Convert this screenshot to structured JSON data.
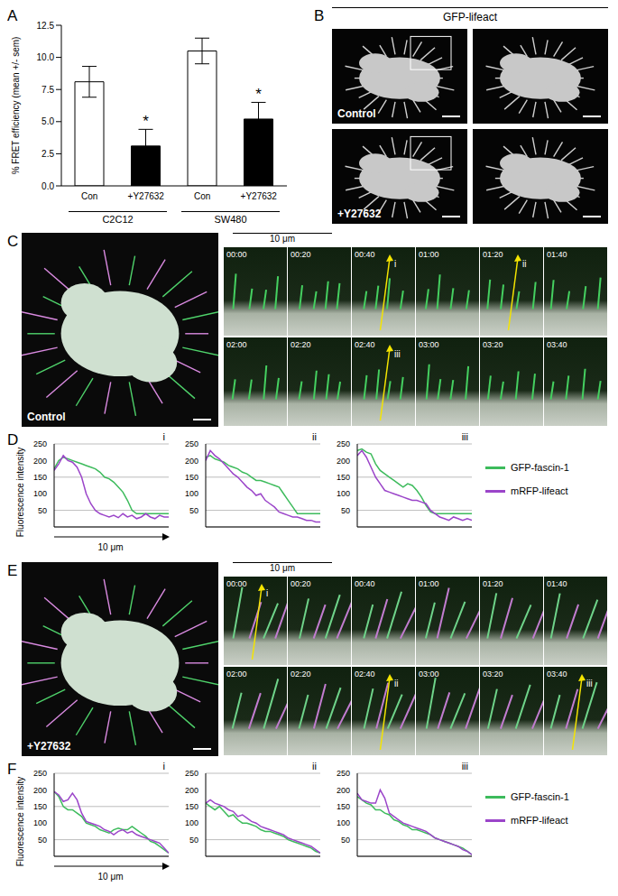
{
  "chart_data": [
    {
      "type": "bar",
      "panel": "A",
      "y_label": "% FRET efficiency (mean +/- sem)",
      "categories": [
        "Con",
        "+Y27632",
        "Con",
        "+Y27632"
      ],
      "groups": [
        "C2C12",
        "SW480"
      ],
      "values": [
        8.1,
        3.1,
        10.5,
        5.2
      ],
      "errors": [
        1.2,
        1.3,
        1.0,
        1.3
      ],
      "annotations": [
        null,
        "*",
        null,
        "*"
      ],
      "colors": [
        "#ffffff",
        "#000000",
        "#ffffff",
        "#000000"
      ],
      "ylim": [
        0,
        12.5
      ],
      "yticks": [
        {
          "value": 0,
          "label": "0.0"
        },
        2.5,
        {
          "value": 5,
          "label": "5.0"
        },
        7.5,
        {
          "value": 10,
          "label": "10.0"
        },
        12.5
      ]
    },
    {
      "type": "line",
      "panel": "D",
      "title": "i",
      "y_label": "Fluorescence intensity",
      "x_label": "10 μm",
      "tick_labels": "y",
      "grid": true,
      "xlim": [
        0,
        10
      ],
      "ylim": [
        0,
        250
      ],
      "yticks": [
        0,
        50,
        100,
        150,
        200,
        250
      ],
      "x": [
        0,
        0.4,
        0.8,
        1.2,
        1.6,
        2,
        2.4,
        2.8,
        3.2,
        3.6,
        4,
        4.4,
        4.8,
        5.2,
        5.6,
        6,
        6.4,
        6.8,
        7.2,
        7.6,
        8,
        8.4,
        8.8,
        9.2,
        9.6,
        10
      ],
      "series": [
        {
          "name": "GFP-fascin-1",
          "color": "#3dbb5c",
          "values": [
            175,
            200,
            210,
            205,
            200,
            195,
            190,
            185,
            180,
            175,
            165,
            150,
            145,
            135,
            120,
            105,
            80,
            50,
            40,
            40,
            40,
            40,
            40,
            40,
            40,
            40
          ]
        },
        {
          "name": "mRFP-lifeact",
          "color": "#9b45c9",
          "values": [
            170,
            190,
            215,
            200,
            195,
            180,
            150,
            100,
            70,
            50,
            40,
            35,
            30,
            35,
            28,
            40,
            30,
            35,
            25,
            30,
            40,
            30,
            25,
            35,
            30,
            30
          ]
        }
      ]
    },
    {
      "type": "line",
      "title": "ii",
      "tick_labels": "y",
      "grid": true,
      "xlim": [
        0,
        10
      ],
      "ylim": [
        0,
        250
      ],
      "yticks": [
        0,
        50,
        100,
        150,
        200,
        250
      ],
      "x": [
        0,
        0.4,
        0.8,
        1.2,
        1.6,
        2,
        2.4,
        2.8,
        3.2,
        3.6,
        4,
        4.4,
        4.8,
        5.2,
        5.6,
        6,
        6.4,
        6.8,
        7.2,
        7.6,
        8,
        8.4,
        8.8,
        9.2,
        9.6,
        10
      ],
      "series": [
        {
          "name": "GFP-fascin-1",
          "color": "#3dbb5c",
          "values": [
            210,
            215,
            205,
            200,
            195,
            185,
            180,
            175,
            165,
            160,
            150,
            140,
            140,
            135,
            130,
            125,
            120,
            100,
            80,
            60,
            40,
            40,
            40,
            40,
            40,
            40
          ]
        },
        {
          "name": "mRFP-lifeact",
          "color": "#9b45c9",
          "values": [
            200,
            230,
            215,
            205,
            190,
            175,
            160,
            150,
            135,
            120,
            110,
            95,
            100,
            80,
            70,
            60,
            45,
            40,
            35,
            30,
            30,
            25,
            20,
            20,
            15,
            15
          ]
        }
      ]
    },
    {
      "type": "line",
      "title": "iii",
      "tick_labels": "y",
      "grid": true,
      "xlim": [
        0,
        10
      ],
      "ylim": [
        0,
        250
      ],
      "yticks": [
        0,
        50,
        100,
        150,
        200,
        250
      ],
      "x": [
        0,
        0.4,
        0.8,
        1.2,
        1.6,
        2,
        2.4,
        2.8,
        3.2,
        3.6,
        4,
        4.4,
        4.8,
        5.2,
        5.6,
        6,
        6.4,
        6.8,
        7.2,
        7.6,
        8,
        8.4,
        8.8,
        9.2,
        9.6,
        10
      ],
      "series": [
        {
          "name": "GFP-fascin-1",
          "color": "#3dbb5c",
          "values": [
            230,
            235,
            225,
            220,
            190,
            170,
            160,
            150,
            140,
            130,
            120,
            130,
            125,
            110,
            90,
            65,
            45,
            40,
            40,
            40,
            40,
            40,
            40,
            40,
            40,
            40
          ]
        },
        {
          "name": "mRFP-lifeact",
          "color": "#9b45c9",
          "values": [
            215,
            230,
            210,
            180,
            150,
            130,
            110,
            105,
            100,
            95,
            90,
            85,
            80,
            80,
            75,
            70,
            50,
            40,
            30,
            25,
            20,
            30,
            25,
            20,
            25,
            20
          ]
        }
      ]
    },
    {
      "type": "line",
      "panel": "F",
      "title": "i",
      "y_label": "Fluorescence intensity",
      "x_label": "10 μm",
      "tick_labels": "y",
      "grid": true,
      "xlim": [
        0,
        10
      ],
      "ylim": [
        0,
        250
      ],
      "yticks": [
        0,
        50,
        100,
        150,
        200,
        250
      ],
      "x": [
        0,
        0.4,
        0.8,
        1.2,
        1.6,
        2,
        2.4,
        2.8,
        3.2,
        3.6,
        4,
        4.4,
        4.8,
        5.2,
        5.6,
        6,
        6.4,
        6.8,
        7.2,
        7.6,
        8,
        8.4,
        8.8,
        9.2,
        9.6,
        10
      ],
      "series": [
        {
          "name": "GFP-fascin-1",
          "color": "#3dbb5c",
          "values": [
            195,
            180,
            150,
            140,
            140,
            130,
            120,
            100,
            95,
            90,
            80,
            75,
            70,
            80,
            85,
            80,
            80,
            90,
            80,
            70,
            60,
            45,
            40,
            30,
            20,
            10
          ]
        },
        {
          "name": "mRFP-lifeact",
          "color": "#9b45c9",
          "values": [
            195,
            185,
            165,
            170,
            190,
            170,
            130,
            105,
            100,
            95,
            90,
            80,
            75,
            65,
            75,
            80,
            70,
            75,
            65,
            60,
            55,
            50,
            45,
            40,
            25,
            10
          ]
        }
      ]
    },
    {
      "type": "line",
      "title": "ii",
      "tick_labels": "y",
      "grid": true,
      "xlim": [
        0,
        10
      ],
      "ylim": [
        0,
        250
      ],
      "yticks": [
        0,
        50,
        100,
        150,
        200,
        250
      ],
      "x": [
        0,
        0.4,
        0.8,
        1.2,
        1.6,
        2,
        2.4,
        2.8,
        3.2,
        3.6,
        4,
        4.4,
        4.8,
        5.2,
        5.6,
        6,
        6.4,
        6.8,
        7.2,
        7.6,
        8,
        8.4,
        8.8,
        9.2,
        9.6,
        10
      ],
      "series": [
        {
          "name": "GFP-fascin-1",
          "color": "#3dbb5c",
          "values": [
            160,
            150,
            140,
            150,
            135,
            120,
            125,
            110,
            100,
            100,
            95,
            90,
            80,
            75,
            75,
            70,
            65,
            60,
            50,
            45,
            40,
            35,
            30,
            25,
            15,
            10
          ]
        },
        {
          "name": "mRFP-lifeact",
          "color": "#9b45c9",
          "values": [
            160,
            170,
            160,
            155,
            150,
            140,
            135,
            120,
            125,
            115,
            105,
            100,
            90,
            85,
            80,
            75,
            70,
            65,
            55,
            50,
            45,
            40,
            35,
            30,
            20,
            10
          ]
        }
      ]
    },
    {
      "type": "line",
      "title": "iii",
      "tick_labels": "y",
      "grid": true,
      "xlim": [
        0,
        10
      ],
      "ylim": [
        0,
        250
      ],
      "yticks": [
        0,
        50,
        100,
        150,
        200,
        250
      ],
      "x": [
        0,
        0.4,
        0.8,
        1.2,
        1.6,
        2,
        2.4,
        2.8,
        3.2,
        3.6,
        4,
        4.4,
        4.8,
        5.2,
        5.6,
        6,
        6.4,
        6.8,
        7.2,
        7.6,
        8,
        8.4,
        8.8,
        9.2,
        9.6,
        10
      ],
      "series": [
        {
          "name": "GFP-fascin-1",
          "color": "#3dbb5c",
          "values": [
            180,
            170,
            160,
            155,
            140,
            140,
            130,
            125,
            110,
            105,
            95,
            90,
            80,
            80,
            75,
            70,
            65,
            55,
            50,
            45,
            40,
            35,
            30,
            25,
            15,
            5
          ]
        },
        {
          "name": "mRFP-lifeact",
          "color": "#9b45c9",
          "values": [
            190,
            170,
            165,
            160,
            160,
            200,
            175,
            130,
            120,
            110,
            100,
            95,
            90,
            85,
            80,
            75,
            65,
            55,
            50,
            45,
            40,
            35,
            30,
            20,
            15,
            5
          ]
        }
      ]
    }
  ],
  "images": {
    "B": {
      "letter": "B",
      "header": "GFP-lifeact",
      "rows": [
        "Control",
        "+Y27632"
      ]
    },
    "C": {
      "letter": "C",
      "label": "Control",
      "scale": "10 μm",
      "times": [
        "00:00",
        "00:20",
        "00:40",
        "01:00",
        "01:20",
        "01:40",
        "02:00",
        "02:20",
        "02:40",
        "03:00",
        "03:20",
        "03:40"
      ],
      "arrows": [
        {
          "frame": 2,
          "label": "i"
        },
        {
          "frame": 4,
          "label": "ii"
        },
        {
          "frame": 8,
          "label": "iii"
        }
      ]
    },
    "E": {
      "letter": "E",
      "label": "+Y27632",
      "scale": "10 μm",
      "times": [
        "00:00",
        "00:20",
        "00:40",
        "01:00",
        "01:20",
        "01:40",
        "02:00",
        "02:20",
        "02:40",
        "03:00",
        "03:20",
        "03:40"
      ],
      "arrows": [
        {
          "frame": 0,
          "label": "i"
        },
        {
          "frame": 8,
          "label": "ii"
        },
        {
          "frame": 11,
          "label": "iii"
        }
      ]
    }
  }
}
